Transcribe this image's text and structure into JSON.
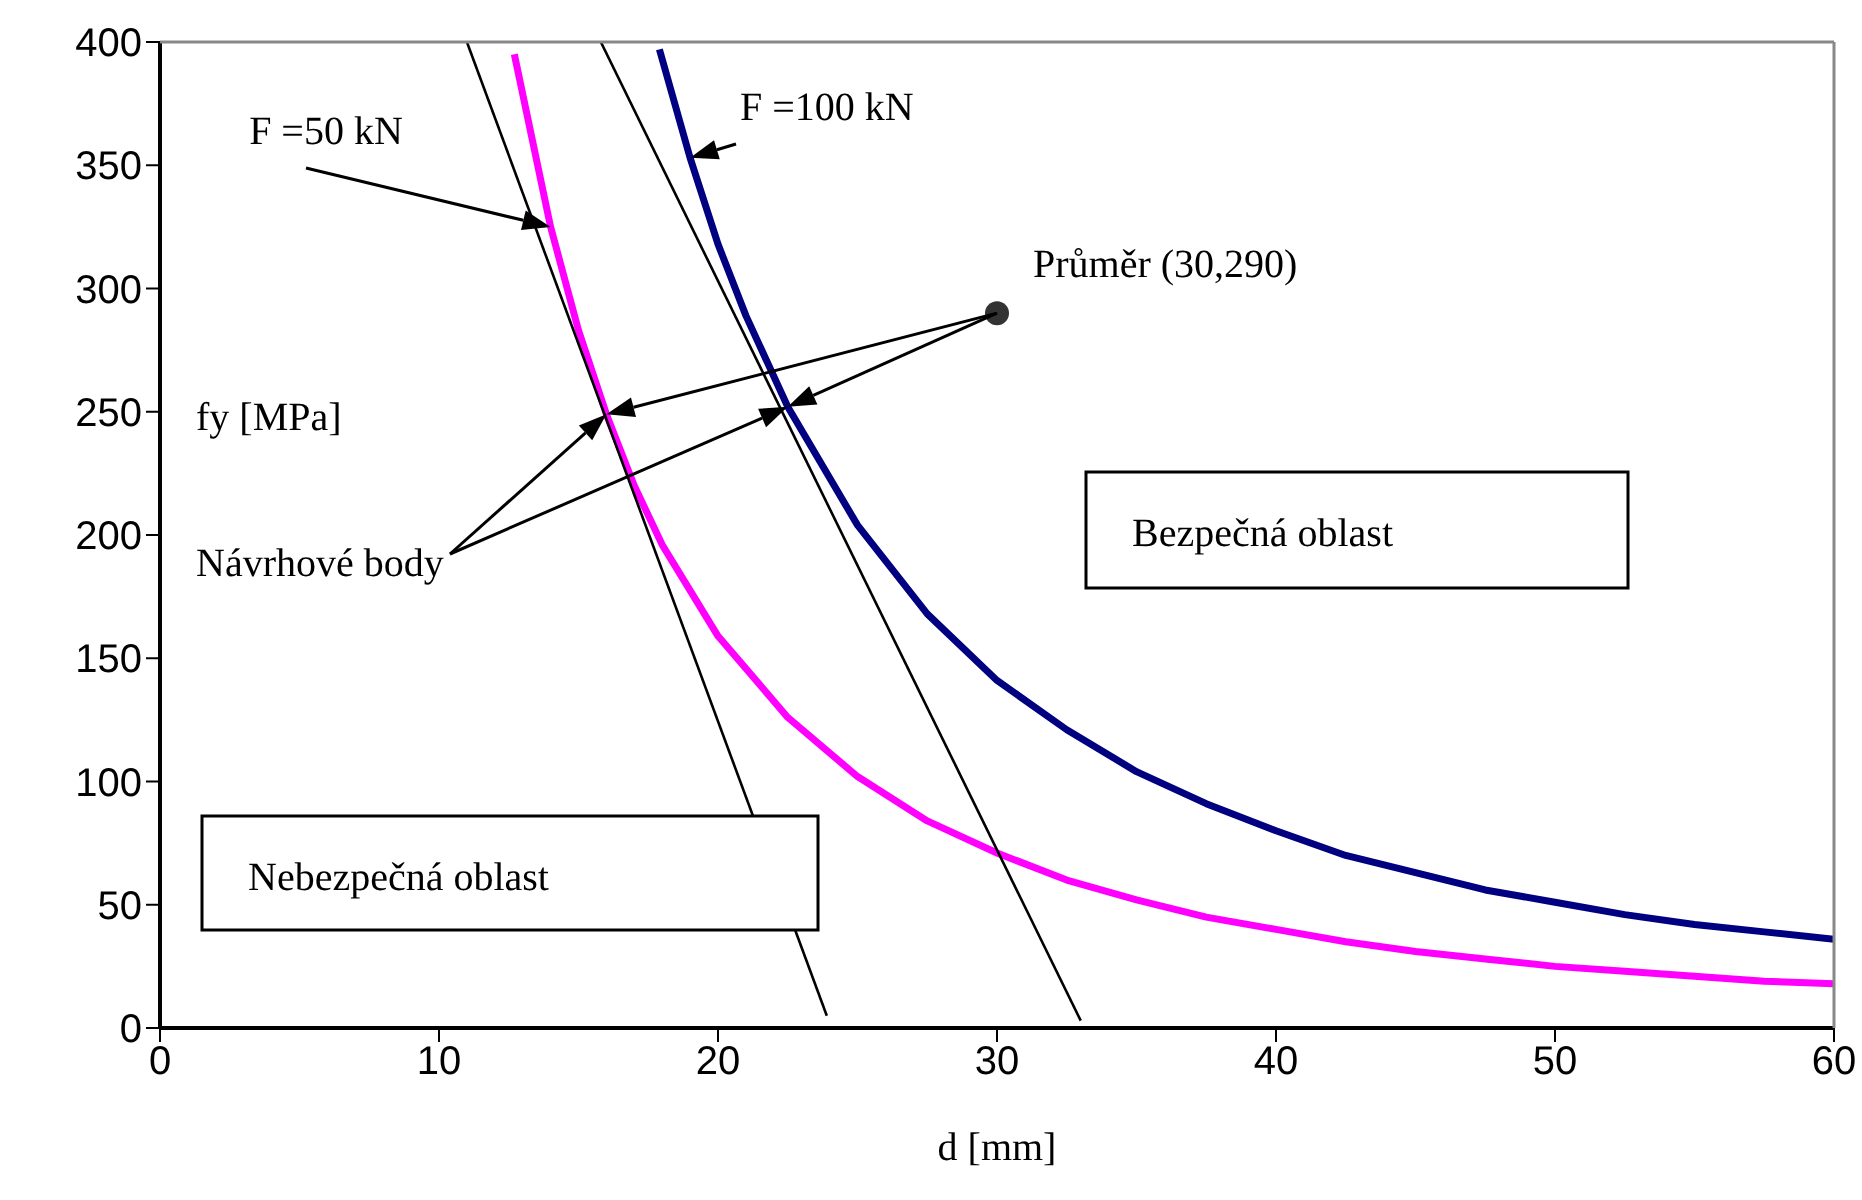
{
  "chart_data": {
    "type": "line",
    "xlabel": "d [mm]",
    "ylabel": "fy [MPa]",
    "xlim": [
      0,
      60
    ],
    "xticks": [
      0,
      10,
      20,
      30,
      40,
      50,
      60
    ],
    "ylim": [
      0,
      400
    ],
    "yticks": [
      0,
      50,
      100,
      150,
      200,
      250,
      300,
      350,
      400
    ],
    "grid": false,
    "marker": "none",
    "line_style": "solid",
    "series": [
      {
        "name": "F =50 kN",
        "color": "#ff00ff",
        "x": [
          12.7,
          14,
          15,
          16,
          17,
          18,
          20,
          22.5,
          25,
          27.5,
          30,
          32.5,
          35,
          37.5,
          40,
          42.5,
          45,
          47.5,
          50,
          52.5,
          55,
          57.5,
          60
        ],
        "values": [
          395,
          325,
          283,
          249,
          220,
          196,
          159,
          126,
          102,
          84,
          71,
          60,
          52,
          45,
          40,
          35,
          31,
          28,
          25,
          23,
          21,
          19,
          18
        ]
      },
      {
        "name": "F =100 kN",
        "color": "#000080",
        "x": [
          17.9,
          19,
          20,
          21,
          22.5,
          25,
          27.5,
          30,
          32.5,
          35,
          37.5,
          40,
          42.5,
          45,
          47.5,
          50,
          52.5,
          55,
          57.5,
          60
        ],
        "values": [
          397,
          353,
          318,
          289,
          252,
          204,
          168,
          141,
          121,
          104,
          91,
          80,
          70,
          63,
          56,
          51,
          46,
          42,
          39,
          36
        ]
      },
      {
        "color": "#000000",
        "x": [
          11,
          23.9
        ],
        "values": [
          400,
          5
        ]
      },
      {
        "color": "#000000",
        "x": [
          15.8,
          33
        ],
        "values": [
          400,
          3
        ]
      },
      {
        "type": "scatter",
        "marker": "circle",
        "color": "#333333",
        "x": [
          30
        ],
        "values": [
          290
        ]
      }
    ],
    "annotations": [
      {
        "text": "Průměr (30,290)",
        "x": 30,
        "y": 290
      },
      "Návrhové body",
      "Bezpečná oblast",
      "Nebezpečná oblast"
    ]
  }
}
